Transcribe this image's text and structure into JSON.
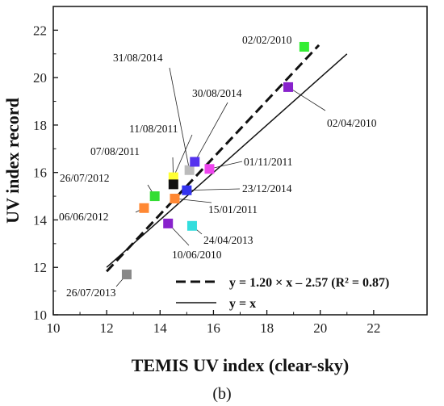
{
  "chart_data": {
    "type": "scatter",
    "title": "",
    "xlabel": "TEMIS UV index (clear-sky)",
    "ylabel": "UV index record",
    "xlim": [
      10,
      24
    ],
    "ylim": [
      10,
      23
    ],
    "xticks": [
      10,
      12,
      14,
      16,
      18,
      20,
      22
    ],
    "yticks": [
      10,
      12,
      14,
      16,
      18,
      20,
      22
    ],
    "grid": false,
    "legend_position": "bottom-right",
    "panel_label": "(b)",
    "points": [
      {
        "label": "02/02/2010",
        "x": 19.4,
        "y": 21.3,
        "color": "#33ee33"
      },
      {
        "label": "02/04/2010",
        "x": 18.8,
        "y": 19.6,
        "color": "#8822cc"
      },
      {
        "label": "31/08/2014",
        "x": 15.1,
        "y": 16.1,
        "color": "#bbbbbb"
      },
      {
        "label": "30/08/2014",
        "x": 15.3,
        "y": 16.45,
        "color": "#5533ee"
      },
      {
        "label": "11/08/2011",
        "x": 14.5,
        "y": 15.8,
        "color": "#ffff33"
      },
      {
        "label": "07/08/2011",
        "x": 14.5,
        "y": 15.5,
        "color": "#111111"
      },
      {
        "label": "01/11/2011",
        "x": 15.85,
        "y": 16.15,
        "color": "#ee44ee"
      },
      {
        "label": "26/07/2012",
        "x": 13.8,
        "y": 15.0,
        "color": "#33dd33"
      },
      {
        "label": "15/01/2011",
        "x": 14.55,
        "y": 14.9,
        "color": "#ff8833"
      },
      {
        "label": "23/12/2014",
        "x": 15.0,
        "y": 15.25,
        "color": "#3333ee"
      },
      {
        "label": "06/06/2012",
        "x": 13.4,
        "y": 14.5,
        "color": "#ff8833"
      },
      {
        "label": "24/04/2013",
        "x": 15.2,
        "y": 13.75,
        "color": "#33dddd"
      },
      {
        "label": "10/06/2010",
        "x": 14.3,
        "y": 13.85,
        "color": "#8822cc"
      },
      {
        "label": "26/07/2013",
        "x": 12.75,
        "y": 11.7,
        "color": "#888888"
      }
    ],
    "series": [
      {
        "name": "y = 1.20 × x – 2.57 (R² = 0.87)",
        "style": "dashed",
        "slope": 1.2,
        "intercept": -2.57,
        "x_range": [
          12,
          19.95
        ]
      },
      {
        "name": "y = x",
        "style": "solid",
        "slope": 1.0,
        "intercept": 0,
        "x_range": [
          12,
          21
        ]
      }
    ]
  }
}
